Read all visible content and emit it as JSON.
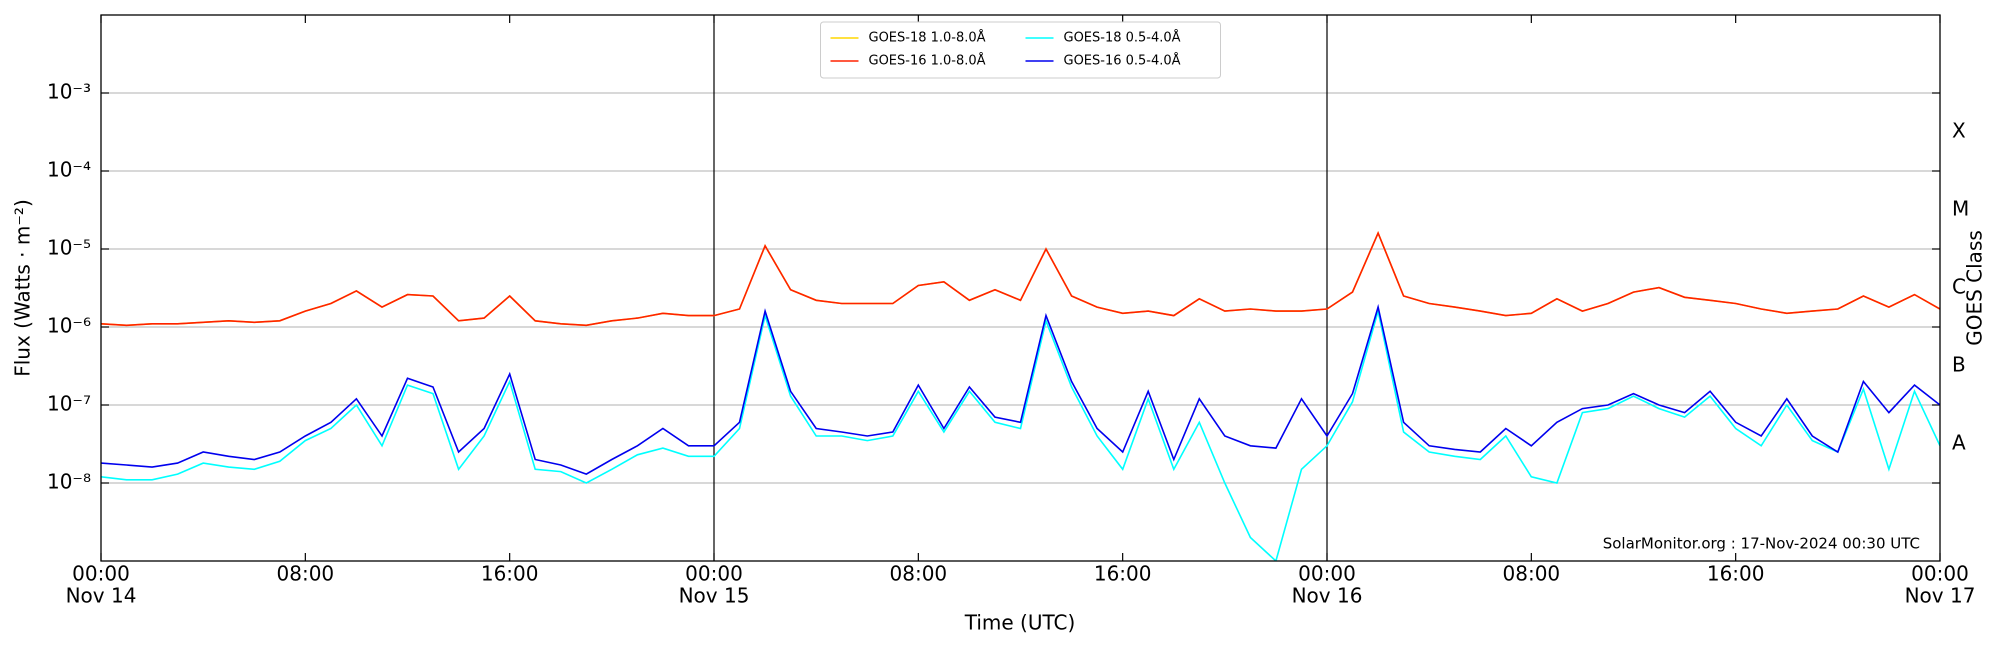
{
  "chart_data": {
    "type": "line",
    "x_label": "Time (UTC)",
    "y_label": "Flux (Watts · m⁻²)",
    "y2_label": "GOES Class",
    "annotation": "SolarMonitor.org : 17-Nov-2024 00:30 UTC",
    "log_y": true,
    "grid": true,
    "legend": "upper center",
    "xlim": [
      0,
      72
    ],
    "xticks": [
      {
        "value": 0,
        "label": "00:00"
      },
      {
        "value": 8,
        "label": "08:00"
      },
      {
        "value": 16,
        "label": "16:00"
      },
      {
        "value": 24,
        "label": "00:00"
      },
      {
        "value": 32,
        "label": "08:00"
      },
      {
        "value": 40,
        "label": "16:00"
      },
      {
        "value": 48,
        "label": "00:00"
      },
      {
        "value": 56,
        "label": "08:00"
      },
      {
        "value": 64,
        "label": "16:00"
      },
      {
        "value": 72,
        "label": "00:00"
      }
    ],
    "date_labels": [
      {
        "value": 0,
        "label": "Nov 14"
      },
      {
        "value": 24,
        "label": "Nov 15"
      },
      {
        "value": 48,
        "label": "Nov 16"
      },
      {
        "value": 72,
        "label": "Nov 17"
      }
    ],
    "day_lines": [
      24,
      48
    ],
    "ylim": [
      1e-09,
      0.01
    ],
    "yticks": [
      {
        "value": 1e-08,
        "label": "10⁻⁸"
      },
      {
        "value": 1e-07,
        "label": "10⁻⁷"
      },
      {
        "value": 1e-06,
        "label": "10⁻⁶"
      },
      {
        "value": 1e-05,
        "label": "10⁻⁵"
      },
      {
        "value": 0.0001,
        "label": "10⁻⁴"
      },
      {
        "value": 0.001,
        "label": "10⁻³"
      }
    ],
    "y2lim": [
      1e-09,
      0.01
    ],
    "y2ticks": [
      {
        "value": 3.16e-08,
        "label": "A"
      },
      {
        "value": 3.16e-07,
        "label": "B"
      },
      {
        "value": 3.16e-06,
        "label": "C"
      },
      {
        "value": 3.16e-05,
        "label": "M"
      },
      {
        "value": 0.000316,
        "label": "X"
      }
    ],
    "x": [
      0,
      1,
      2,
      3,
      4,
      5,
      6,
      7,
      8,
      9,
      10,
      11,
      12,
      13,
      14,
      15,
      16,
      17,
      18,
      19,
      20,
      21,
      22,
      23,
      24,
      25,
      26,
      27,
      28,
      29,
      30,
      31,
      32,
      33,
      34,
      35,
      36,
      37,
      38,
      39,
      40,
      41,
      42,
      43,
      44,
      45,
      46,
      47,
      48,
      49,
      50,
      51,
      52,
      53,
      54,
      55,
      56,
      57,
      58,
      59,
      60,
      61,
      62,
      63,
      64,
      65,
      66,
      67,
      68,
      69,
      70,
      71,
      72
    ],
    "series": [
      {
        "name": "GOES-18 1.0-8.0Å",
        "color": "#ffd700",
        "values": [
          1.1e-06,
          1.05e-06,
          1.1e-06,
          1.1e-06,
          1.15e-06,
          1.2e-06,
          1.15e-06,
          1.2e-06,
          1.6e-06,
          2e-06,
          2.9e-06,
          1.8e-06,
          2.6e-06,
          2.5e-06,
          1.2e-06,
          1.3e-06,
          2.5e-06,
          1.2e-06,
          1.1e-06,
          1.05e-06,
          1.2e-06,
          1.3e-06,
          1.5e-06,
          1.4e-06,
          1.4e-06,
          1.7e-06,
          1.1e-05,
          3e-06,
          2.2e-06,
          2e-06,
          2e-06,
          2e-06,
          3.4e-06,
          3.8e-06,
          2.2e-06,
          3e-06,
          2.2e-06,
          1e-05,
          2.5e-06,
          1.8e-06,
          1.5e-06,
          1.6e-06,
          1.4e-06,
          2.3e-06,
          1.6e-06,
          1.7e-06,
          1.6e-06,
          1.6e-06,
          1.7e-06,
          2.8e-06,
          1.6e-05,
          2.5e-06,
          2e-06,
          1.8e-06,
          1.6e-06,
          1.4e-06,
          1.5e-06,
          2.3e-06,
          1.6e-06,
          2e-06,
          2.8e-06,
          3.2e-06,
          2.4e-06,
          2.2e-06,
          2e-06,
          1.7e-06,
          1.5e-06,
          1.6e-06,
          1.7e-06,
          2.5e-06,
          1.8e-06,
          2.6e-06,
          1.7e-06
        ]
      },
      {
        "name": "GOES-16 1.0-8.0Å",
        "color": "#ff2200",
        "values": [
          1.1e-06,
          1.05e-06,
          1.1e-06,
          1.1e-06,
          1.15e-06,
          1.2e-06,
          1.15e-06,
          1.2e-06,
          1.6e-06,
          2e-06,
          2.9e-06,
          1.8e-06,
          2.6e-06,
          2.5e-06,
          1.2e-06,
          1.3e-06,
          2.5e-06,
          1.2e-06,
          1.1e-06,
          1.05e-06,
          1.2e-06,
          1.3e-06,
          1.5e-06,
          1.4e-06,
          1.4e-06,
          1.7e-06,
          1.1e-05,
          3e-06,
          2.2e-06,
          2e-06,
          2e-06,
          2e-06,
          3.4e-06,
          3.8e-06,
          2.2e-06,
          3e-06,
          2.2e-06,
          1e-05,
          2.5e-06,
          1.8e-06,
          1.5e-06,
          1.6e-06,
          1.4e-06,
          2.3e-06,
          1.6e-06,
          1.7e-06,
          1.6e-06,
          1.6e-06,
          1.7e-06,
          2.8e-06,
          1.6e-05,
          2.5e-06,
          2e-06,
          1.8e-06,
          1.6e-06,
          1.4e-06,
          1.5e-06,
          2.3e-06,
          1.6e-06,
          2e-06,
          2.8e-06,
          3.2e-06,
          2.4e-06,
          2.2e-06,
          2e-06,
          1.7e-06,
          1.5e-06,
          1.6e-06,
          1.7e-06,
          2.5e-06,
          1.8e-06,
          2.6e-06,
          1.7e-06
        ]
      },
      {
        "name": "GOES-18 0.5-4.0Å",
        "color": "#00ffff",
        "values": [
          1.2e-08,
          1.1e-08,
          1.1e-08,
          1.3e-08,
          1.8e-08,
          1.6e-08,
          1.5e-08,
          1.9e-08,
          3.5e-08,
          5e-08,
          1e-07,
          3e-08,
          1.8e-07,
          1.4e-07,
          1.5e-08,
          4e-08,
          2e-07,
          1.5e-08,
          1.4e-08,
          1e-08,
          1.5e-08,
          2.3e-08,
          2.8e-08,
          2.2e-08,
          2.2e-08,
          5e-08,
          1.4e-06,
          1.3e-07,
          4e-08,
          4e-08,
          3.5e-08,
          4e-08,
          1.5e-07,
          4.5e-08,
          1.5e-07,
          6e-08,
          5e-08,
          1.2e-06,
          1.7e-07,
          4e-08,
          1.5e-08,
          1.2e-07,
          1.5e-08,
          6e-08,
          1e-08,
          2e-09,
          1e-09,
          1.5e-08,
          3e-08,
          1.1e-07,
          1.6e-06,
          4.5e-08,
          2.5e-08,
          2.2e-08,
          2e-08,
          4e-08,
          1.2e-08,
          1e-08,
          8e-08,
          9e-08,
          1.3e-07,
          9e-08,
          7e-08,
          1.3e-07,
          5e-08,
          3e-08,
          1e-07,
          3.5e-08,
          2.5e-08,
          1.6e-07,
          1.5e-08,
          1.5e-07,
          3e-08
        ]
      },
      {
        "name": "GOES-16 0.5-4.0Å",
        "color": "#0000ee",
        "values": [
          1.8e-08,
          1.7e-08,
          1.6e-08,
          1.8e-08,
          2.5e-08,
          2.2e-08,
          2e-08,
          2.5e-08,
          4e-08,
          6e-08,
          1.2e-07,
          4e-08,
          2.2e-07,
          1.7e-07,
          2.5e-08,
          5e-08,
          2.5e-07,
          2e-08,
          1.7e-08,
          1.3e-08,
          2e-08,
          3e-08,
          5e-08,
          3e-08,
          3e-08,
          6e-08,
          1.6e-06,
          1.5e-07,
          5e-08,
          4.5e-08,
          4e-08,
          4.5e-08,
          1.8e-07,
          5e-08,
          1.7e-07,
          7e-08,
          6e-08,
          1.4e-06,
          2e-07,
          5e-08,
          2.5e-08,
          1.5e-07,
          2e-08,
          1.2e-07,
          4e-08,
          3e-08,
          2.8e-08,
          1.2e-07,
          4e-08,
          1.4e-07,
          1.8e-06,
          6e-08,
          3e-08,
          2.7e-08,
          2.5e-08,
          5e-08,
          3e-08,
          6e-08,
          9e-08,
          1e-07,
          1.4e-07,
          1e-07,
          8e-08,
          1.5e-07,
          6e-08,
          4e-08,
          1.2e-07,
          4e-08,
          2.5e-08,
          2e-07,
          8e-08,
          1.8e-07,
          1e-07
        ]
      }
    ]
  }
}
